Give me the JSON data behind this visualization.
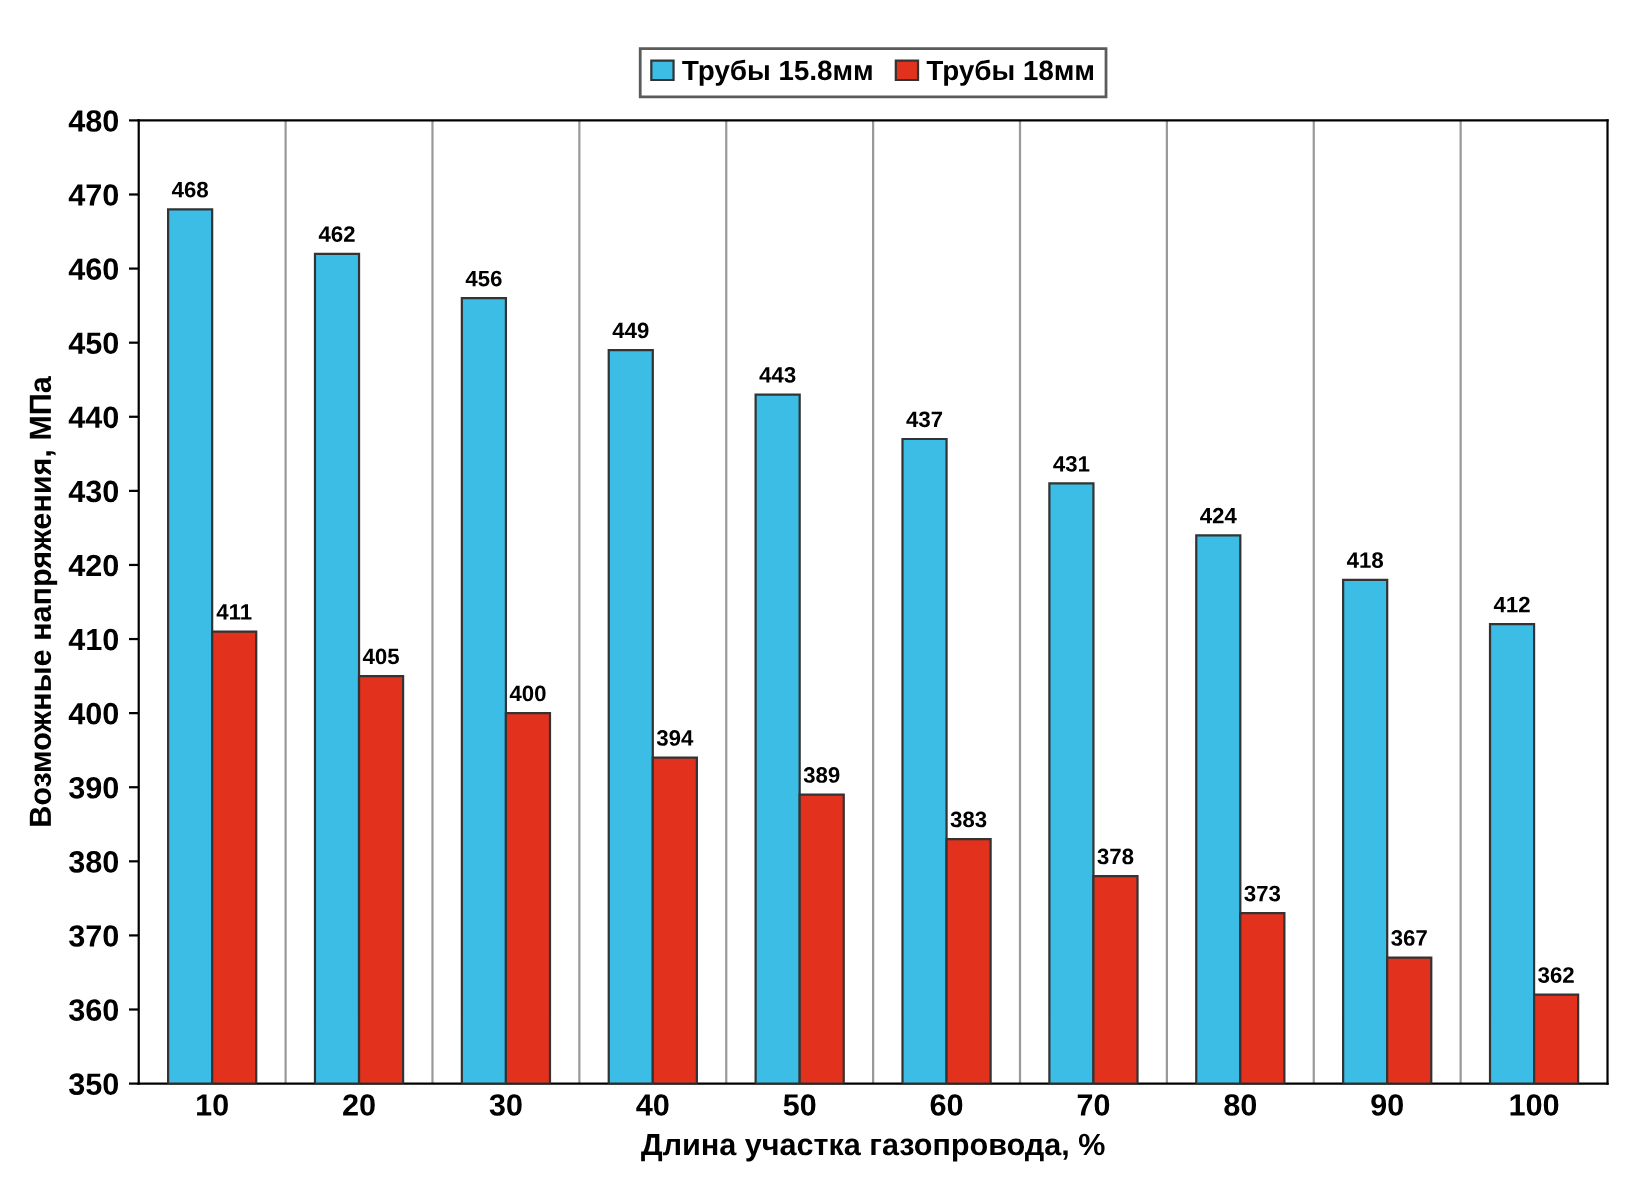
{
  "chart_data": {
    "type": "bar",
    "xlabel": "Длина участка газопровода, %",
    "ylabel": "Возможные напряжения, МПа",
    "categories": [
      "10",
      "20",
      "30",
      "40",
      "50",
      "60",
      "70",
      "80",
      "90",
      "100"
    ],
    "series": [
      {
        "name": "Трубы 15.8мм",
        "color": "#3cbde6",
        "values": [
          468,
          462,
          456,
          449,
          443,
          437,
          431,
          424,
          418,
          412
        ]
      },
      {
        "name": "Трубы 18мм",
        "color": "#e2321e",
        "values": [
          411,
          405,
          400,
          394,
          389,
          383,
          378,
          373,
          367,
          362
        ]
      }
    ],
    "ylim": [
      350,
      480
    ],
    "yticks": [
      350,
      360,
      370,
      380,
      390,
      400,
      410,
      420,
      430,
      440,
      450,
      460,
      470,
      480
    ],
    "grid": "x",
    "legend": "top",
    "data_labels": true
  }
}
